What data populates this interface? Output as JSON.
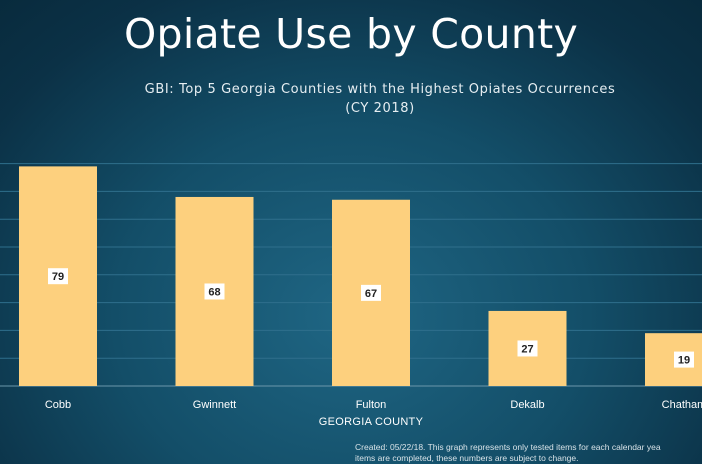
{
  "slide": {
    "title": "Opiate Use by County",
    "footnote_line1": "Created: 05/22/18. This graph represents only tested items for each calendar yea",
    "footnote_line2": "items are completed, these numbers are subject to change."
  },
  "colors": {
    "bar": "#fdd07e",
    "bar_label_bg": "#ffffff",
    "gridline": "#2f6f8c",
    "text": "#ffffff",
    "background": "#134e68"
  },
  "chart_data": {
    "type": "bar",
    "title": "GBI: Top 5 Georgia Counties with the Highest Opiates Occurrences",
    "subtitle": "(CY 2018)",
    "xlabel": "GEORGIA COUNTY",
    "ylabel": "",
    "categories": [
      "Cobb",
      "Gwinnett",
      "Fulton",
      "Dekalb",
      "Chatham"
    ],
    "values": [
      79,
      68,
      67,
      27,
      19
    ],
    "ylim": [
      0,
      80
    ],
    "grid": true,
    "data_labels": true
  }
}
